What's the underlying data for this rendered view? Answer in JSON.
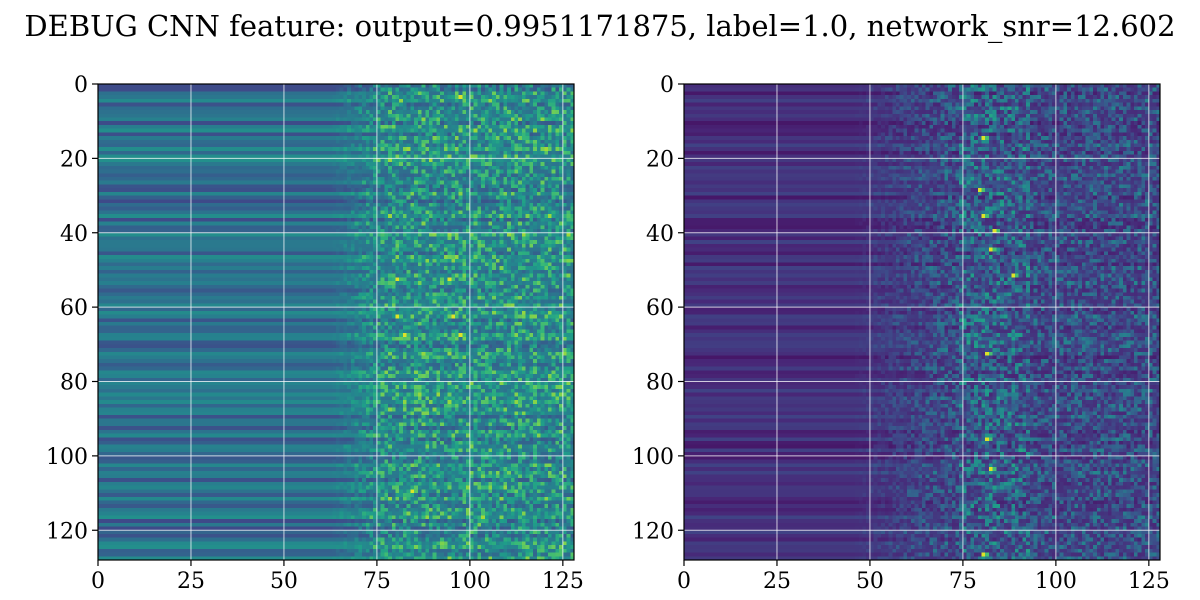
{
  "figure": {
    "title": "DEBUG CNN feature: output=0.9951171875, label=1.0, network_snr=12.602"
  },
  "chart_data": [
    {
      "type": "heatmap",
      "title": "",
      "xlabel": "",
      "ylabel": "",
      "rows": 128,
      "cols": 128,
      "xlim": [
        0,
        128
      ],
      "ylim": [
        128,
        0
      ],
      "x_ticks": [
        0,
        25,
        50,
        75,
        100,
        125
      ],
      "y_ticks": [
        0,
        20,
        40,
        60,
        80,
        100,
        120
      ],
      "grid": true,
      "colormap": "viridis",
      "colors": {
        "low": "#440154",
        "mid": "#21918c",
        "high": "#fde725"
      },
      "description_of_pattern": {
        "cols_0_to_70": "row-wise horizontal banding, mostly blue-teal, intensity roughly constant along each row",
        "cols_75_to_127": "noisy, higher-variance values with bright yellow-green spots",
        "bright_spots": [
          [
            3,
            97
          ],
          [
            62,
            80
          ],
          [
            62,
            95
          ],
          [
            67,
            82
          ],
          [
            67,
            97
          ],
          [
            52,
            80
          ],
          [
            52,
            94
          ],
          [
            109,
            84
          ]
        ]
      }
    },
    {
      "type": "heatmap",
      "title": "",
      "xlabel": "",
      "ylabel": "",
      "rows": 128,
      "cols": 128,
      "xlim": [
        0,
        128
      ],
      "ylim": [
        128,
        0
      ],
      "x_ticks": [
        0,
        25,
        50,
        75,
        100,
        125
      ],
      "y_ticks": [
        0,
        20,
        40,
        60,
        80,
        100,
        120
      ],
      "grid": true,
      "colormap": "viridis",
      "colors": {
        "low": "#440154",
        "mid": "#21918c",
        "high": "#fde725"
      },
      "description_of_pattern": {
        "cols_0_to_50": "dark purple with faint horizontal banding",
        "cols_50_to_127": "noisy speckle, brightest column band near x=75-90",
        "bright_spots": [
          [
            14,
            80
          ],
          [
            28,
            79
          ],
          [
            35,
            80
          ],
          [
            39,
            83
          ],
          [
            44,
            82
          ],
          [
            51,
            88
          ],
          [
            72,
            81
          ],
          [
            95,
            81
          ],
          [
            103,
            82
          ],
          [
            126,
            80
          ]
        ]
      }
    }
  ]
}
